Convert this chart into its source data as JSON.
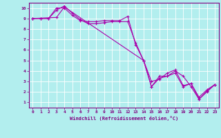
{
  "title": "",
  "xlabel": "Windchill (Refroidissement éolien,°C)",
  "ylabel": "",
  "bg_color": "#b2eeee",
  "line_color": "#aa00aa",
  "grid_color": "#ffffff",
  "xlim": [
    -0.5,
    23.5
  ],
  "ylim": [
    0.5,
    10.5
  ],
  "xticks": [
    0,
    1,
    2,
    3,
    4,
    5,
    6,
    7,
    8,
    9,
    10,
    11,
    12,
    13,
    14,
    15,
    16,
    17,
    18,
    19,
    20,
    21,
    22,
    23
  ],
  "yticks": [
    1,
    2,
    3,
    4,
    5,
    6,
    7,
    8,
    9,
    10
  ],
  "lines": [
    {
      "x": [
        0,
        1,
        2,
        3,
        4,
        5,
        6,
        7,
        8,
        9,
        10,
        11,
        12,
        13,
        14,
        15,
        16,
        17,
        18,
        19,
        20,
        21,
        22,
        23
      ],
      "y": [
        9,
        9,
        9,
        10,
        10,
        9.3,
        8.8,
        8.7,
        8.7,
        8.8,
        8.8,
        8.8,
        9.2,
        6.5,
        5.0,
        2.5,
        3.5,
        3.5,
        4.0,
        3.5,
        2.5,
        1.3,
        2.0,
        2.7
      ]
    },
    {
      "x": [
        0,
        1,
        2,
        3,
        4,
        5,
        6,
        7,
        8,
        9,
        10,
        11,
        12,
        13,
        14,
        15,
        16,
        17,
        18,
        19,
        20,
        21,
        22,
        23
      ],
      "y": [
        9,
        9,
        9,
        9.8,
        10.2,
        9.5,
        8.9,
        8.5,
        8.5,
        8.6,
        8.7,
        8.7,
        8.7,
        6.7,
        5.0,
        3.0,
        3.2,
        3.8,
        4.1,
        2.6,
        2.8,
        1.5,
        2.2,
        2.7
      ]
    },
    {
      "x": [
        0,
        3,
        4,
        14,
        15,
        16,
        17,
        18,
        19,
        20,
        21,
        22,
        23
      ],
      "y": [
        9,
        9.1,
        10.1,
        5.0,
        2.5,
        3.3,
        3.5,
        3.8,
        2.5,
        2.8,
        1.3,
        2.1,
        2.7
      ]
    }
  ]
}
